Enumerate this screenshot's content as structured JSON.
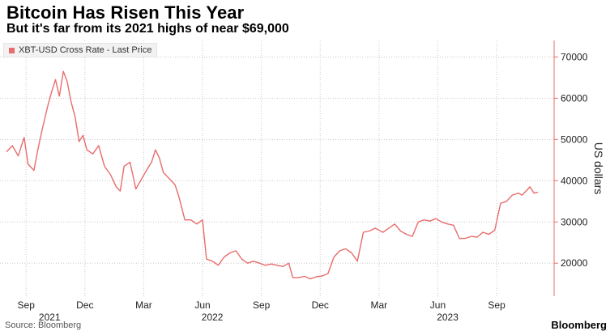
{
  "header": {
    "title": "Bitcoin Has Risen This Year",
    "subtitle": "But it's far from its 2021 highs of near $69,000"
  },
  "footer": {
    "source": "Source: Bloomberg",
    "brand": "Bloomberg"
  },
  "colors": {
    "series": "#e86c6c",
    "grid": "#c8c8c8",
    "axis": "#e86c6c"
  },
  "chart_data": {
    "type": "line",
    "title": "Bitcoin Has Risen This Year",
    "subtitle": "But it's far from its 2021 highs of near $69,000",
    "ylabel": "US dollars",
    "xlabel": "",
    "ylim": [
      12000,
      74000
    ],
    "yticks": [
      20000,
      30000,
      40000,
      50000,
      60000,
      70000
    ],
    "ytick_labels": [
      "20000",
      "30000",
      "40000",
      "50000",
      "60000",
      "70000"
    ],
    "legend": "XBT-USD Cross Rate - Last Price",
    "legend_position": "top-left",
    "grid": true,
    "x_range": [
      0,
      27.6
    ],
    "xticks": [
      {
        "pos": 1,
        "label": "Sep"
      },
      {
        "pos": 4,
        "label": "Dec"
      },
      {
        "pos": 7,
        "label": "Mar"
      },
      {
        "pos": 10,
        "label": "Jun"
      },
      {
        "pos": 13,
        "label": "Sep"
      },
      {
        "pos": 16,
        "label": "Dec"
      },
      {
        "pos": 19,
        "label": "Mar"
      },
      {
        "pos": 22,
        "label": "Jun"
      },
      {
        "pos": 25,
        "label": "Sep"
      }
    ],
    "year_labels": [
      {
        "pos": 2.2,
        "label": "2021"
      },
      {
        "pos": 10.5,
        "label": "2022"
      },
      {
        "pos": 22.5,
        "label": "2023"
      }
    ],
    "series": [
      {
        "name": "XBT-USD Cross Rate - Last Price",
        "x": [
          0.0,
          0.3,
          0.6,
          0.9,
          1.1,
          1.4,
          1.6,
          1.8,
          2.1,
          2.3,
          2.5,
          2.7,
          2.9,
          3.1,
          3.3,
          3.5,
          3.7,
          3.9,
          4.1,
          4.4,
          4.7,
          5.0,
          5.3,
          5.6,
          5.8,
          6.0,
          6.3,
          6.6,
          6.9,
          7.2,
          7.4,
          7.6,
          7.8,
          8.0,
          8.3,
          8.6,
          8.8,
          9.1,
          9.4,
          9.7,
          10.0,
          10.2,
          10.5,
          10.8,
          11.1,
          11.4,
          11.7,
          12.0,
          12.3,
          12.6,
          12.9,
          13.2,
          13.5,
          13.8,
          14.1,
          14.4,
          14.6,
          14.9,
          15.2,
          15.5,
          15.8,
          16.1,
          16.4,
          16.7,
          17.0,
          17.3,
          17.6,
          17.9,
          18.2,
          18.5,
          18.8,
          19.0,
          19.2,
          19.5,
          19.8,
          20.1,
          20.4,
          20.7,
          21.0,
          21.3,
          21.6,
          21.9,
          22.2,
          22.5,
          22.8,
          23.1,
          23.4,
          23.7,
          24.0,
          24.3,
          24.6,
          24.9,
          25.2,
          25.5,
          25.8,
          26.1,
          26.3,
          26.5,
          26.7,
          26.9,
          27.1
        ],
        "values": [
          47000,
          48500,
          46000,
          50500,
          44000,
          42500,
          47500,
          52000,
          58000,
          61500,
          64500,
          60500,
          66500,
          64000,
          59000,
          55500,
          49500,
          51000,
          47500,
          46500,
          48500,
          43500,
          41500,
          38500,
          37500,
          43500,
          44500,
          38000,
          40500,
          43000,
          44500,
          47500,
          45500,
          42000,
          40500,
          39000,
          36000,
          30500,
          30500,
          29500,
          30500,
          21000,
          20500,
          19500,
          21500,
          22500,
          23000,
          21000,
          20000,
          20500,
          20000,
          19500,
          19800,
          19500,
          19200,
          20000,
          16500,
          16500,
          16800,
          16200,
          16700,
          16900,
          17500,
          21500,
          23000,
          23500,
          22500,
          20500,
          27500,
          27800,
          28500,
          28000,
          27500,
          28500,
          29500,
          27800,
          27000,
          26500,
          30000,
          30500,
          30200,
          30800,
          30000,
          29500,
          29200,
          26000,
          26000,
          26500,
          26300,
          27500,
          27000,
          28000,
          34500,
          35000,
          36500,
          37000,
          36500,
          37500,
          38500,
          37000,
          37200
        ]
      }
    ]
  }
}
